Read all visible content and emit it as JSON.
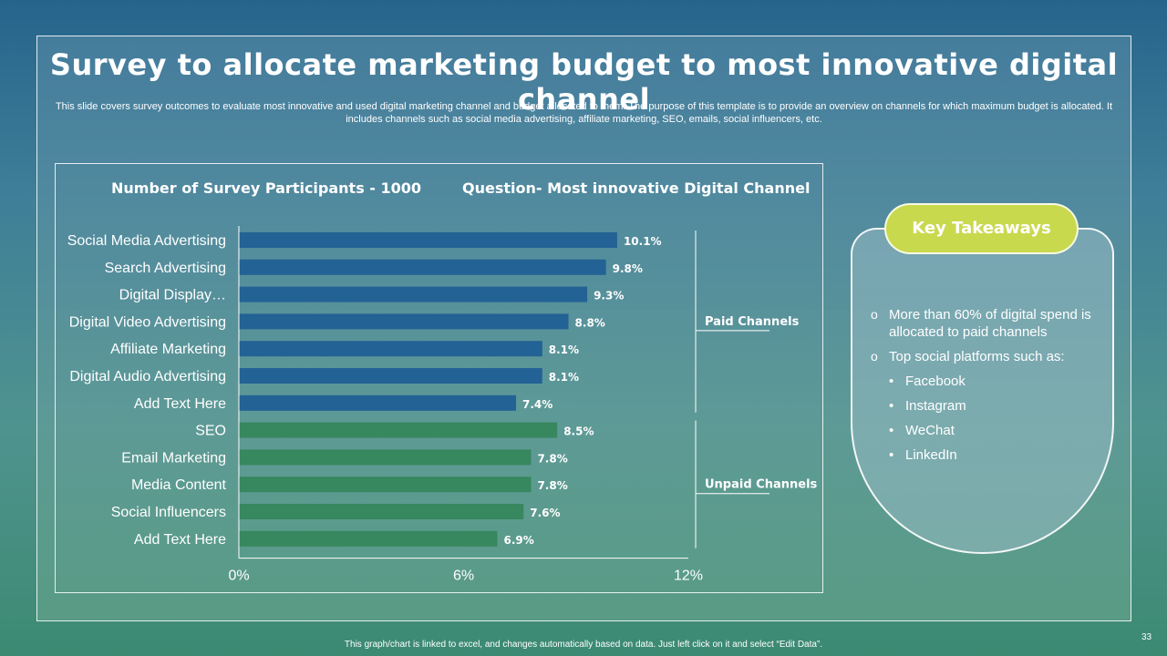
{
  "title": "Survey to allocate marketing budget to most innovative digital channel",
  "subtitle": "This slide covers survey outcomes to evaluate most innovative and used digital marketing channel and budget allocated to them. The purpose of this template is to provide an overview on channels for which maximum budget is allocated. It includes channels such as social media advertising, affiliate marketing, SEO, emails, social influencers, etc.",
  "chart_data": {
    "type": "bar",
    "orientation": "horizontal",
    "header_left": "Number of Survey Participants - 1000",
    "header_right": "Question- Most innovative Digital Channel",
    "categories": [
      "Social Media Advertising",
      "Search Advertising",
      "Digital Display…",
      "Digital Video Advertising",
      "Affiliate Marketing",
      "Digital Audio Advertising",
      "Add Text Here",
      "SEO",
      "Email Marketing",
      "Media Content",
      "Social Influencers",
      "Add Text Here"
    ],
    "values": [
      10.1,
      9.8,
      9.3,
      8.8,
      8.1,
      8.1,
      7.4,
      8.5,
      7.8,
      7.8,
      7.6,
      6.9
    ],
    "value_labels": [
      "10.1%",
      "9.8%",
      "9.3%",
      "8.8%",
      "8.1%",
      "8.1%",
      "7.4%",
      "8.5%",
      "7.8%",
      "7.8%",
      "7.6%",
      "6.9%"
    ],
    "groups": [
      {
        "name": "Paid Channels",
        "start": 0,
        "end": 6,
        "color": "#236294"
      },
      {
        "name": "Unpaid Channels",
        "start": 7,
        "end": 11,
        "color": "#37875f"
      }
    ],
    "xlim": [
      0,
      12
    ],
    "x_ticks": [
      0,
      6,
      12
    ],
    "x_tick_labels": [
      "0%",
      "6%",
      "12%"
    ]
  },
  "takeaways": {
    "heading": "Key Takeaways",
    "point1": "More than 60% of digital spend is allocated to paid channels",
    "point2": "Top social platforms such as:",
    "bullet_o": "o",
    "bullet_dot": "•",
    "platforms": [
      "Facebook",
      "Instagram",
      "WeChat",
      "LinkedIn"
    ]
  },
  "footnote": "This graph/chart is linked to excel, and changes automatically based on data. Just left click on it and select “Edit Data”.",
  "page_number": "33"
}
